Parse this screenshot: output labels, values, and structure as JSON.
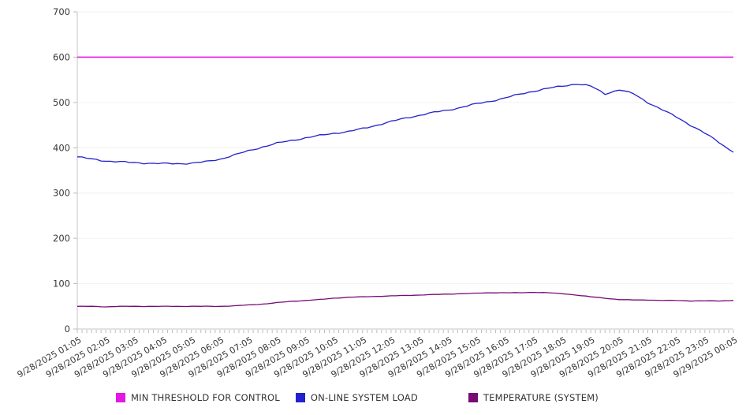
{
  "chart_data": {
    "type": "line",
    "title": "",
    "xlabel": "",
    "ylabel": "",
    "x_tick_labels": [
      "9/28/2025 01:05",
      "9/28/2025 02:05",
      "9/28/2025 03:05",
      "9/28/2025 04:05",
      "9/28/2025 05:05",
      "9/28/2025 06:05",
      "9/28/2025 07:05",
      "9/28/2025 08:05",
      "9/28/2025 09:05",
      "9/28/2025 10:05",
      "9/28/2025 11:05",
      "9/28/2025 12:05",
      "9/28/2025 13:05",
      "9/28/2025 14:05",
      "9/28/2025 15:05",
      "9/28/2025 16:05",
      "9/28/2025 17:05",
      "9/28/2025 18:05",
      "9/28/2025 19:05",
      "9/28/2025 20:05",
      "9/28/2025 21:05",
      "9/28/2025 22:05",
      "9/28/2025 23:05",
      "9/29/2025 00:05"
    ],
    "x_step_minutes": 30,
    "ylim": [
      0,
      700
    ],
    "y_ticks": [
      0,
      100,
      200,
      300,
      400,
      500,
      600,
      700
    ],
    "grid": true,
    "legend_position": "bottom",
    "series": [
      {
        "name": "MIN THRESHOLD FOR CONTROL",
        "color": "#E318E3",
        "constant": 600
      },
      {
        "name": "ON-LINE SYSTEM LOAD",
        "color": "#2222CC",
        "values": [
          380,
          375,
          371,
          369,
          367,
          366,
          365,
          365,
          366,
          369,
          375,
          384,
          393,
          402,
          410,
          416,
          422,
          427,
          432,
          436,
          442,
          450,
          458,
          465,
          472,
          478,
          483,
          490,
          497,
          503,
          510,
          518,
          525,
          531,
          536,
          541,
          536,
          519,
          528,
          519,
          500,
          484,
          468,
          450,
          432,
          412,
          390
        ]
      },
      {
        "name": "TEMPERATURE (SYSTEM)",
        "color": "#770C77",
        "values": [
          50,
          50,
          49,
          50,
          50,
          50,
          50,
          50,
          50,
          50,
          50,
          51,
          53,
          55,
          58,
          61,
          63,
          65,
          68,
          70,
          71,
          72,
          73,
          74,
          75,
          76,
          77,
          78,
          79,
          80,
          80,
          80,
          81,
          80,
          78,
          75,
          71,
          68,
          65,
          64,
          64,
          63,
          63,
          62,
          62,
          62,
          63
        ]
      }
    ],
    "colors": {
      "axis": "#C6C6C6",
      "grid": "#F0F0F0",
      "tick": "#BBBBBB",
      "label_text": "#383838",
      "background": "#FFFFFF"
    }
  }
}
